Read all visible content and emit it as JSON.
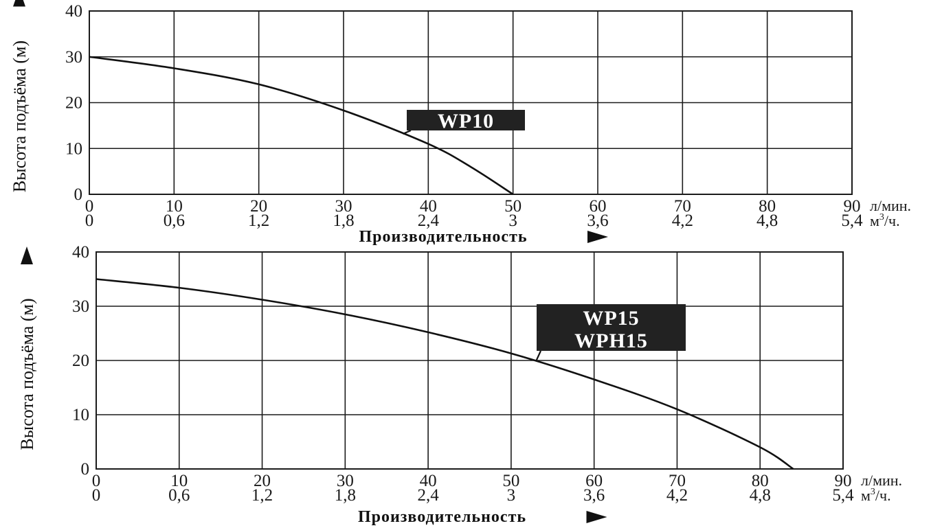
{
  "chart_data": [
    {
      "type": "line",
      "ylabel": "Высота подъёма (м)",
      "xlabel": "Производительность",
      "x_unit_primary": "л/мин.",
      "x_unit_secondary_base": "м",
      "x_unit_secondary_sup": "3",
      "x_unit_secondary_tail": "/ч.",
      "xlim": [
        0,
        90
      ],
      "ylim": [
        0,
        40
      ],
      "x_ticks": [
        "0",
        "10",
        "20",
        "30",
        "40",
        "50",
        "60",
        "70",
        "80",
        "90"
      ],
      "x_ticks_secondary": [
        "0",
        "0,6",
        "1,2",
        "1,8",
        "2,4",
        "3",
        "3,6",
        "4,2",
        "4,8",
        "5,4"
      ],
      "y_ticks": [
        "0",
        "10",
        "20",
        "30",
        "40"
      ],
      "grid": true,
      "series": [
        {
          "name": "WP10",
          "labels": [
            "WP10"
          ],
          "points": [
            [
              0,
              30
            ],
            [
              10,
              27.5
            ],
            [
              20,
              24
            ],
            [
              30,
              18.3
            ],
            [
              40,
              11
            ],
            [
              45,
              6
            ],
            [
              50,
              0
            ]
          ]
        }
      ]
    },
    {
      "type": "line",
      "ylabel": "Высота подъёма (м)",
      "xlabel": "Производительность",
      "x_unit_primary": "л/мин.",
      "x_unit_secondary_base": "м",
      "x_unit_secondary_sup": "3",
      "x_unit_secondary_tail": "/ч.",
      "xlim": [
        0,
        90
      ],
      "ylim": [
        0,
        40
      ],
      "x_ticks": [
        "0",
        "10",
        "20",
        "30",
        "40",
        "50",
        "60",
        "70",
        "80",
        "90"
      ],
      "x_ticks_secondary": [
        "0",
        "0,6",
        "1,2",
        "1,8",
        "2,4",
        "3",
        "3,6",
        "4,2",
        "4,8",
        "5,4"
      ],
      "y_ticks": [
        "0",
        "10",
        "20",
        "30",
        "40"
      ],
      "grid": true,
      "series": [
        {
          "name": "WP15 / WPH15",
          "labels": [
            "WP15",
            "WPH15"
          ],
          "points": [
            [
              0,
              35
            ],
            [
              10,
              33.4
            ],
            [
              20,
              31.2
            ],
            [
              30,
              28.5
            ],
            [
              40,
              25.2
            ],
            [
              50,
              21.3
            ],
            [
              60,
              16.5
            ],
            [
              70,
              11
            ],
            [
              80,
              4
            ],
            [
              84,
              0
            ]
          ]
        }
      ]
    }
  ]
}
